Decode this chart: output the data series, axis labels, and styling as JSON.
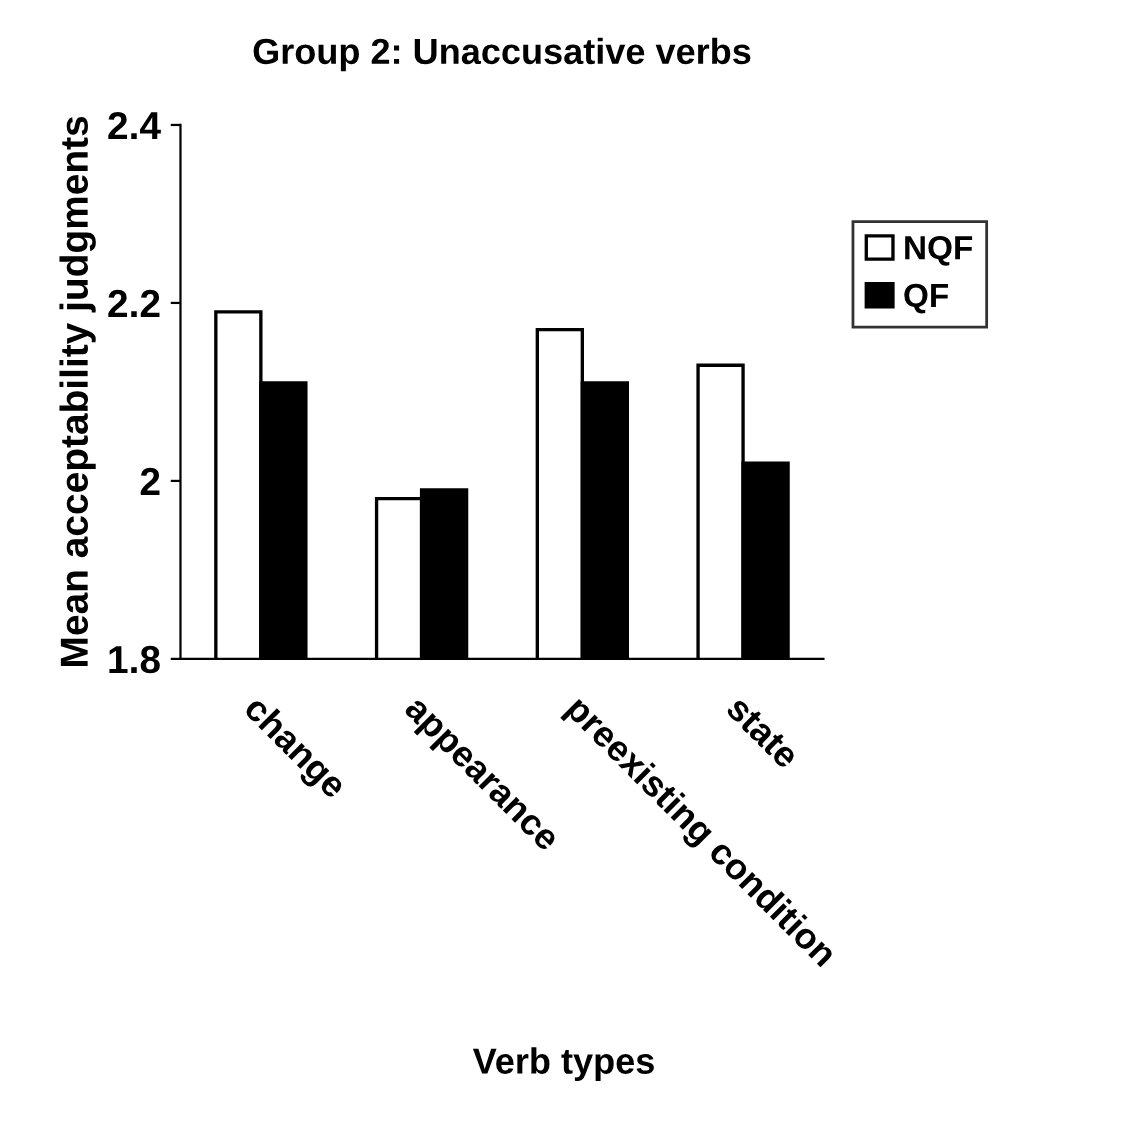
{
  "chart_data": {
    "type": "bar",
    "title": "Group 2: Unaccusative verbs",
    "xlabel": "Verb types",
    "ylabel": "Mean acceptability judgments",
    "categories": [
      "change",
      "appearance",
      "preexisting condition",
      "state"
    ],
    "series": [
      {
        "name": "NQF",
        "color": "#ffffff",
        "values": [
          2.19,
          1.98,
          2.17,
          2.13
        ]
      },
      {
        "name": "QF",
        "color": "#000000",
        "values": [
          2.11,
          1.99,
          2.11,
          2.02
        ]
      }
    ],
    "ylim": [
      1.8,
      2.4
    ],
    "yticks": [
      1.8,
      2,
      2.2,
      2.4
    ],
    "grid": false,
    "legend": "right"
  }
}
